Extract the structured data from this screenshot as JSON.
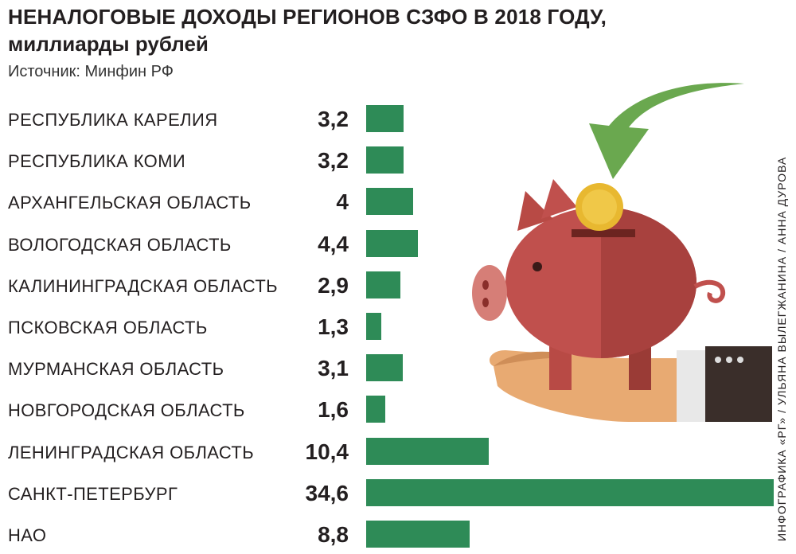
{
  "header": {
    "title_line1": "НЕНАЛОГОВЫЕ ДОХОДЫ РЕГИОНОВ СЗФО В 2018 ГОДУ,",
    "title_line2": "миллиарды рублей",
    "source": "Источник: Минфин РФ"
  },
  "credit": "ИНФОГРАФИКА «РГ» / УЛЬЯНА ВЫЛЕГЖАНИНА / АННА ДУРОВА",
  "colors": {
    "bar": "#2e8b57",
    "pig": "#c0504d",
    "coin": "#e8b830",
    "arrow": "#5a9a3a",
    "hand": "#e6a870",
    "sleeve": "#3a2e2a"
  },
  "icons": [
    "piggy-bank-icon",
    "coin-icon",
    "arrow-icon",
    "hand-icon"
  ],
  "chart_data": {
    "type": "bar",
    "orientation": "horizontal",
    "categories": [
      "РЕСПУБЛИКА КАРЕЛИЯ",
      "РЕСПУБЛИКА КОМИ",
      "АРХАНГЕЛЬСКАЯ ОБЛАСТЬ",
      "ВОЛОГОДСКАЯ ОБЛАСТЬ",
      "КАЛИНИНГРАДСКАЯ ОБЛАСТЬ",
      "ПСКОВСКАЯ ОБЛАСТЬ",
      "МУРМАНСКАЯ ОБЛАСТЬ",
      "НОВГОРОДСКАЯ ОБЛАСТЬ",
      "ЛЕНИНГРАДСКАЯ ОБЛАСТЬ",
      "САНКТ-ПЕТЕРБУРГ",
      "НАО"
    ],
    "values": [
      3.2,
      3.2,
      4,
      4.4,
      2.9,
      1.3,
      3.1,
      1.6,
      10.4,
      34.6,
      8.8
    ],
    "value_labels": [
      "3,2",
      "3,2",
      "4",
      "4,4",
      "2,9",
      "1,3",
      "3,1",
      "1,6",
      "10,4",
      "34,6",
      "8,8"
    ],
    "title": "НЕНАЛОГОВЫЕ ДОХОДЫ РЕГИОНОВ СЗФО В 2018 ГОДУ, миллиарды рублей",
    "xlabel": "",
    "ylabel": "",
    "grid": false,
    "legend": "none"
  }
}
